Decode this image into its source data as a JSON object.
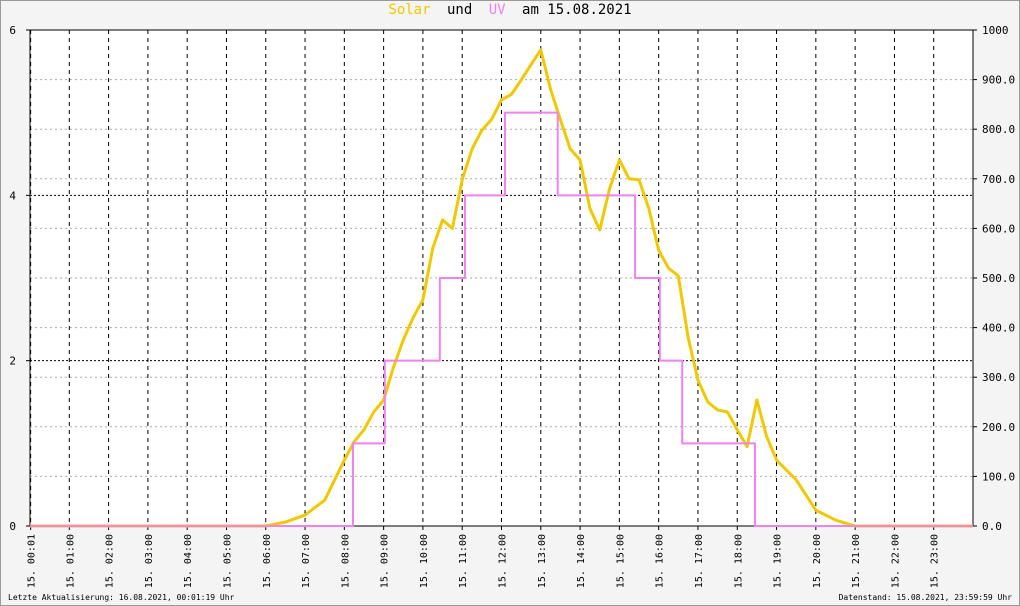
{
  "chart_data": {
    "type": "line",
    "title": [
      {
        "text": "Solar",
        "color": "#f0c800"
      },
      {
        "text": "und",
        "color": "#000000"
      },
      {
        "text": "UV",
        "color": "#ee82ee"
      },
      {
        "text": "am 15.08.2021",
        "color": "#000000"
      }
    ],
    "footer_left": "Letzte Aktualisierung: 16.08.2021, 00:01:19 Uhr",
    "footer_right": "Datenstand: 15.08.2021, 23:59:59 Uhr",
    "xlim": [
      0,
      24
    ],
    "xticks": [
      {
        "value": 0.0167,
        "label": "15. 00:01"
      },
      {
        "value": 1,
        "label": "15. 01:00"
      },
      {
        "value": 2,
        "label": "15. 02:00"
      },
      {
        "value": 3,
        "label": "15. 03:00"
      },
      {
        "value": 4,
        "label": "15. 04:00"
      },
      {
        "value": 5,
        "label": "15. 05:00"
      },
      {
        "value": 6,
        "label": "15. 06:00"
      },
      {
        "value": 7,
        "label": "15. 07:00"
      },
      {
        "value": 8,
        "label": "15. 08:00"
      },
      {
        "value": 9,
        "label": "15. 09:00"
      },
      {
        "value": 10,
        "label": "15. 10:00"
      },
      {
        "value": 11,
        "label": "15. 11:00"
      },
      {
        "value": 12,
        "label": "15. 12:00"
      },
      {
        "value": 13,
        "label": "15. 13:00"
      },
      {
        "value": 14,
        "label": "15. 14:00"
      },
      {
        "value": 15,
        "label": "15. 15:00"
      },
      {
        "value": 16,
        "label": "15. 16:00"
      },
      {
        "value": 17,
        "label": "15. 17:00"
      },
      {
        "value": 18,
        "label": "15. 18:00"
      },
      {
        "value": 19,
        "label": "15. 19:00"
      },
      {
        "value": 20,
        "label": "15. 20:00"
      },
      {
        "value": 21,
        "label": "15. 21:00"
      },
      {
        "value": 22,
        "label": "15. 22:00"
      },
      {
        "value": 23,
        "label": "15. 23:00"
      }
    ],
    "ylim": [
      0,
      6
    ],
    "yticks": [
      0,
      2,
      4,
      6
    ],
    "y2lim": [
      0,
      1000
    ],
    "y2ticks": [
      {
        "value": 0,
        "label": "0.0"
      },
      {
        "value": 100,
        "label": "100.0"
      },
      {
        "value": 200,
        "label": "200.0"
      },
      {
        "value": 300,
        "label": "300.0"
      },
      {
        "value": 400,
        "label": "400.0"
      },
      {
        "value": 500,
        "label": "500.0"
      },
      {
        "value": 600,
        "label": "600.0"
      },
      {
        "value": 700,
        "label": "700.0"
      },
      {
        "value": 800,
        "label": "800.0"
      },
      {
        "value": 900,
        "label": "900.0"
      },
      {
        "value": 1000,
        "label": "1000"
      }
    ],
    "grid": true,
    "series": [
      {
        "name": "Solar",
        "color": "#f0c800",
        "axis": "y2",
        "step": false,
        "x": [
          0,
          6,
          6.5,
          7,
          7.5,
          8,
          8.25,
          8.5,
          8.75,
          9,
          9.25,
          9.5,
          9.75,
          10,
          10.25,
          10.5,
          10.75,
          11,
          11.25,
          11.5,
          11.75,
          12,
          12.25,
          12.5,
          12.75,
          13,
          13.25,
          13.5,
          13.75,
          14,
          14.25,
          14.5,
          14.75,
          15,
          15.25,
          15.5,
          15.75,
          16,
          16.25,
          16.5,
          16.75,
          17,
          17.25,
          17.5,
          17.75,
          18,
          18.25,
          18.5,
          18.75,
          19,
          19.5,
          20,
          20.5,
          21,
          24
        ],
        "values": [
          0,
          0,
          8,
          22,
          52,
          133,
          170,
          194,
          230,
          254,
          320,
          375,
          420,
          456,
          560,
          617,
          600,
          698,
          760,
          798,
          820,
          859,
          870,
          899,
          930,
          960,
          880,
          819,
          760,
          738,
          640,
          597,
          680,
          738,
          700,
          698,
          640,
          556,
          520,
          504,
          380,
          294,
          250,
          234,
          230,
          194,
          160,
          254,
          180,
          133,
          93,
          32,
          12,
          0,
          0
        ]
      },
      {
        "name": "UV",
        "color": "#ee82ee",
        "axis": "y",
        "step": true,
        "x": [
          0,
          8.22,
          9.03,
          10.43,
          11.07,
          12.09,
          13.43,
          15.4,
          16.03,
          16.6,
          18.45,
          24
        ],
        "values": [
          0,
          1,
          2,
          3,
          4,
          5,
          4,
          3,
          2,
          1,
          0,
          0
        ]
      }
    ]
  }
}
